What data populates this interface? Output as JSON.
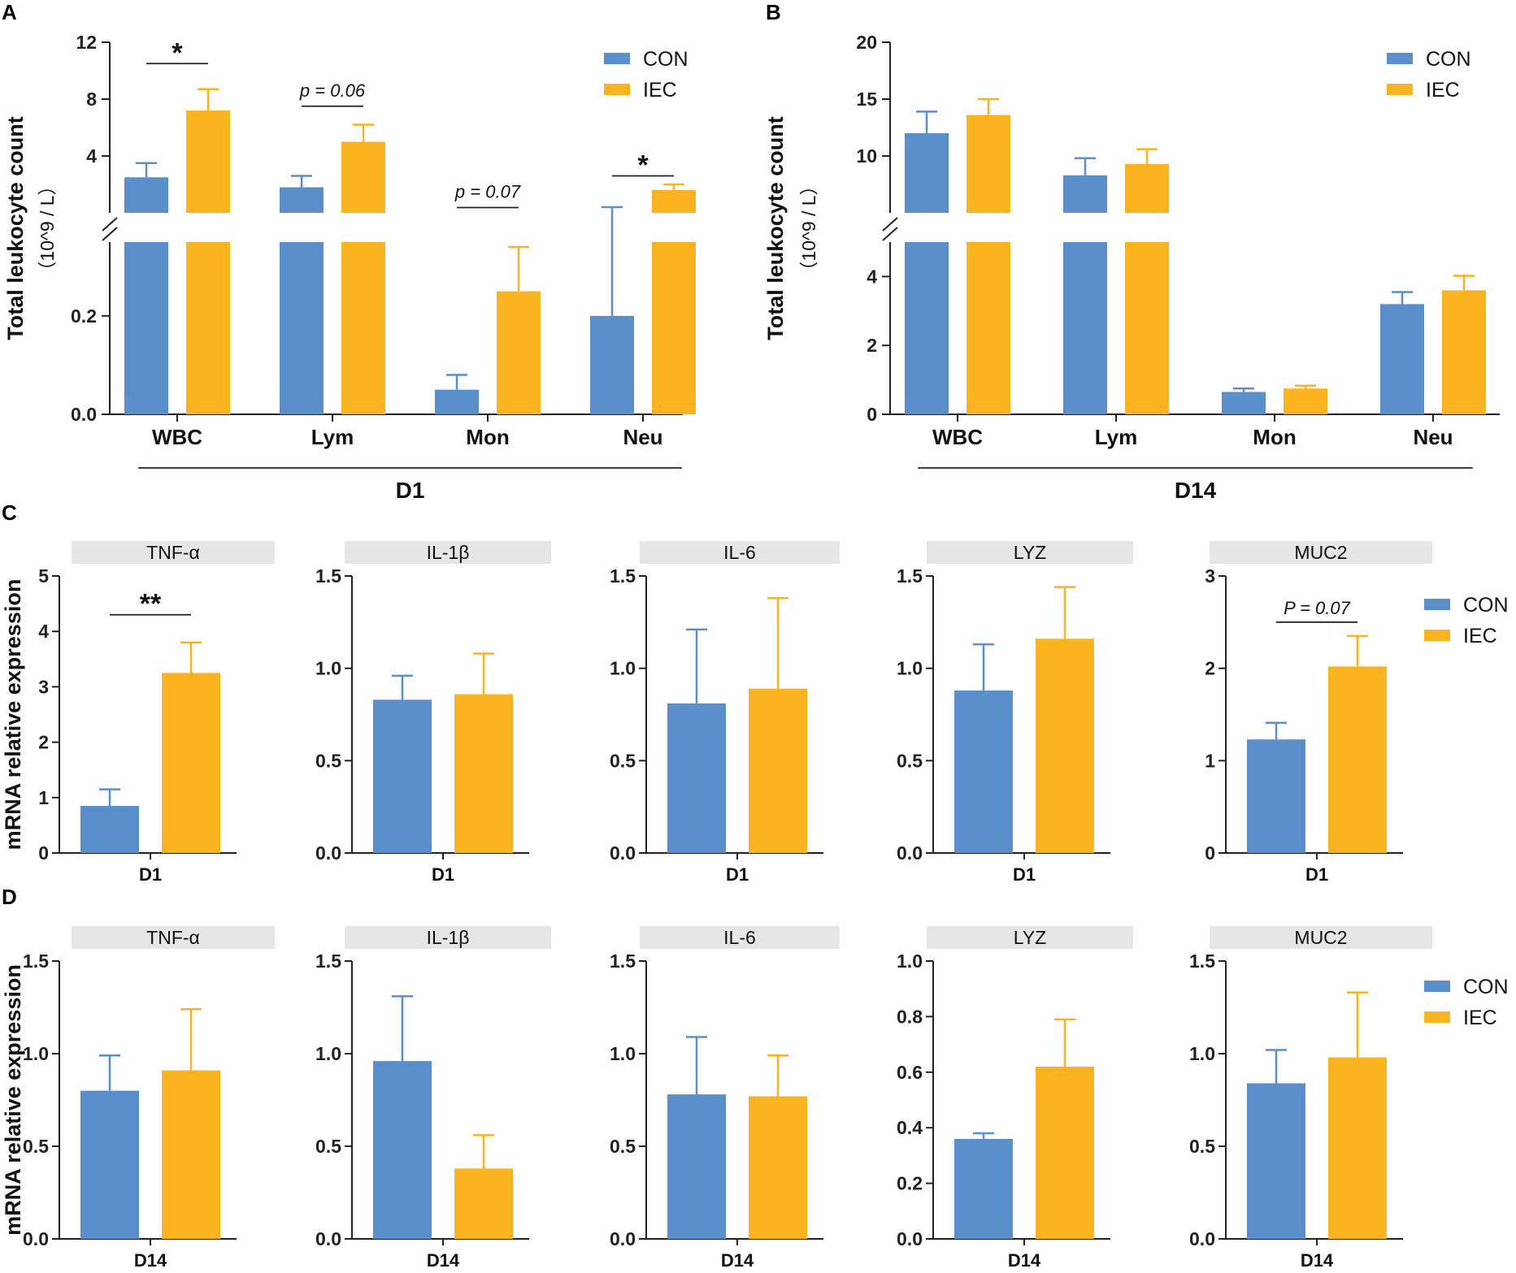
{
  "colors": {
    "con": "#5b8fcb",
    "iec": "#fbb31f",
    "axis": "#222222",
    "strip": "#e6e6e6"
  },
  "legend": {
    "con": "CON",
    "iec": "IEC"
  },
  "chart_data": [
    {
      "panel": "A",
      "type": "bar",
      "ylabel": "Total leukocyte count",
      "yunit": "（10^9 / L）",
      "group_label": "D1",
      "categories": [
        "WBC",
        "Lym",
        "Mon",
        "Neu"
      ],
      "y_break": true,
      "upper_range": [
        0,
        12
      ],
      "upper_ticks": [
        "4",
        "8",
        "12"
      ],
      "upper_tick_values": [
        4,
        8,
        12
      ],
      "lower_range": [
        0,
        0.35
      ],
      "lower_ticks": [
        "0.0",
        "0.2"
      ],
      "lower_tick_values": [
        0,
        0.2
      ],
      "series": [
        {
          "name": "CON",
          "values": [
            2.5,
            1.8,
            0.05,
            0.2
          ],
          "errors": [
            1.0,
            0.8,
            0.03,
            0.2
          ]
        },
        {
          "name": "IEC",
          "values": [
            7.2,
            5.0,
            0.25,
            1.6
          ],
          "errors": [
            1.5,
            1.2,
            0.09,
            0.4
          ]
        }
      ],
      "significance": [
        {
          "category": "WBC",
          "label": "*",
          "level": 10.5
        },
        {
          "category": "Lym",
          "label": "p = 0.06",
          "level": 7.5
        },
        {
          "category": "Mon",
          "label": "p = 0.07",
          "level": 0.37
        },
        {
          "category": "Neu",
          "label": "*",
          "level": 2.6
        }
      ]
    },
    {
      "panel": "B",
      "type": "bar",
      "ylabel": "Total leukocyte count",
      "yunit": "（10^9 / L）",
      "group_label": "D14",
      "categories": [
        "WBC",
        "Lym",
        "Mon",
        "Neu"
      ],
      "y_break": true,
      "upper_range": [
        5,
        20
      ],
      "upper_ticks": [
        "10",
        "15",
        "20"
      ],
      "upper_tick_values": [
        10,
        15,
        20
      ],
      "lower_range": [
        0,
        5
      ],
      "lower_ticks": [
        "0",
        "2",
        "4"
      ],
      "lower_tick_values": [
        0,
        2,
        4
      ],
      "series": [
        {
          "name": "CON",
          "values": [
            12.0,
            8.3,
            0.65,
            3.2
          ],
          "errors": [
            1.9,
            1.5,
            0.1,
            0.35
          ]
        },
        {
          "name": "IEC",
          "values": [
            13.6,
            9.3,
            0.75,
            3.6
          ],
          "errors": [
            1.4,
            1.3,
            0.08,
            0.42
          ]
        }
      ],
      "significance": []
    }
  ],
  "panels": {
    "C": {
      "letter": "C",
      "ylabel": "mRNA relative  expression",
      "xlabel": "D1",
      "genes": [
        {
          "name": "TNF-α",
          "ymax": 5,
          "ticks": [
            "0",
            "1",
            "2",
            "3",
            "4",
            "5"
          ],
          "tick_values": [
            0,
            1,
            2,
            3,
            4,
            5
          ],
          "con": 0.85,
          "con_err": 0.3,
          "iec": 3.25,
          "iec_err": 0.55,
          "sig": "**",
          "sig_level": 4.3
        },
        {
          "name": "IL-1β",
          "ymax": 1.5,
          "ticks": [
            "0.0",
            "0.5",
            "1.0",
            "1.5"
          ],
          "tick_values": [
            0,
            0.5,
            1.0,
            1.5
          ],
          "con": 0.83,
          "con_err": 0.13,
          "iec": 0.86,
          "iec_err": 0.22
        },
        {
          "name": "IL-6",
          "ymax": 1.5,
          "ticks": [
            "0.0",
            "0.5",
            "1.0",
            "1.5"
          ],
          "tick_values": [
            0,
            0.5,
            1.0,
            1.5
          ],
          "con": 0.81,
          "con_err": 0.4,
          "iec": 0.89,
          "iec_err": 0.49
        },
        {
          "name": "LYZ",
          "ymax": 1.5,
          "ticks": [
            "0.0",
            "0.5",
            "1.0",
            "1.5"
          ],
          "tick_values": [
            0,
            0.5,
            1.0,
            1.5
          ],
          "con": 0.88,
          "con_err": 0.25,
          "iec": 1.16,
          "iec_err": 0.28
        },
        {
          "name": "MUC2",
          "ymax": 3,
          "ticks": [
            "0",
            "1",
            "2",
            "3"
          ],
          "tick_values": [
            0,
            1,
            2,
            3
          ],
          "con": 1.23,
          "con_err": 0.18,
          "iec": 2.02,
          "iec_err": 0.33,
          "sig": "P = 0.07",
          "sig_level": 2.5
        }
      ]
    },
    "D": {
      "letter": "D",
      "ylabel": "mRNA relative  expression",
      "xlabel": "D14",
      "genes": [
        {
          "name": "TNF-α",
          "ymax": 1.5,
          "ticks": [
            "0.0",
            "0.5",
            "1.0",
            "1.5"
          ],
          "tick_values": [
            0,
            0.5,
            1.0,
            1.5
          ],
          "con": 0.8,
          "con_err": 0.19,
          "iec": 0.91,
          "iec_err": 0.33
        },
        {
          "name": "IL-1β",
          "ymax": 1.5,
          "ticks": [
            "0.0",
            "0.5",
            "1.0",
            "1.5"
          ],
          "tick_values": [
            0,
            0.5,
            1.0,
            1.5
          ],
          "con": 0.96,
          "con_err": 0.35,
          "iec": 0.38,
          "iec_err": 0.18
        },
        {
          "name": "IL-6",
          "ymax": 1.5,
          "ticks": [
            "0.0",
            "0.5",
            "1.0",
            "1.5"
          ],
          "tick_values": [
            0,
            0.5,
            1.0,
            1.5
          ],
          "con": 0.78,
          "con_err": 0.31,
          "iec": 0.77,
          "iec_err": 0.22
        },
        {
          "name": "LYZ",
          "ymax": 1.0,
          "ticks": [
            "0.0",
            "0.2",
            "0.4",
            "0.6",
            "0.8",
            "1.0"
          ],
          "tick_values": [
            0,
            0.2,
            0.4,
            0.6,
            0.8,
            1.0
          ],
          "con": 0.36,
          "con_err": 0.02,
          "iec": 0.62,
          "iec_err": 0.17
        },
        {
          "name": "MUC2",
          "ymax": 1.5,
          "ticks": [
            "0.0",
            "0.5",
            "1.0",
            "1.5"
          ],
          "tick_values": [
            0,
            0.5,
            1.0,
            1.5
          ],
          "con": 0.84,
          "con_err": 0.18,
          "iec": 0.98,
          "iec_err": 0.35
        }
      ]
    }
  }
}
